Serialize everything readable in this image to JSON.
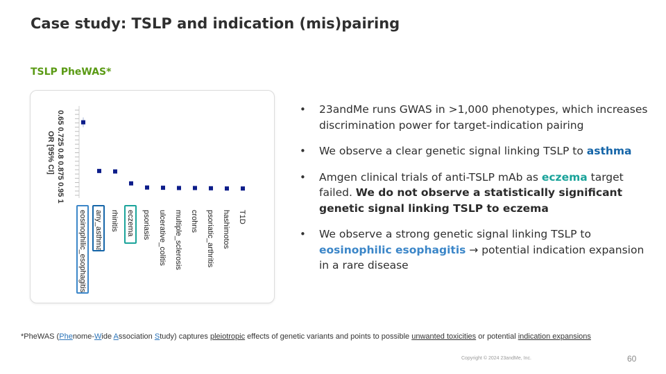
{
  "slide": {
    "title": "Case study: TSLP and indication (mis)pairing",
    "subtitle": "TSLP PheWAS*",
    "page_number": "60",
    "copyright": "Copyright © 2024 23andMe, Inc."
  },
  "bullets": [
    {
      "parts": [
        {
          "text": "23andMe runs GWAS in >1,000 phenotypes, which increases discrimination power for target-indication pairing",
          "style": "normal"
        }
      ]
    },
    {
      "parts": [
        {
          "text": "We observe a clear genetic signal linking TSLP to ",
          "style": "normal"
        },
        {
          "text": "asthma",
          "style": "asthma"
        }
      ]
    },
    {
      "parts": [
        {
          "text": "Amgen clinical trials of anti-TSLP mAb as ",
          "style": "normal"
        },
        {
          "text": "eczema",
          "style": "eczema"
        },
        {
          "text": " target failed.  ",
          "style": "normal"
        },
        {
          "text": "We do not observe a statistically significant genetic signal linking TSLP to eczema",
          "style": "strong"
        }
      ]
    },
    {
      "parts": [
        {
          "text": "We observe a strong genetic signal linking TSLP to ",
          "style": "normal"
        },
        {
          "text": "eosinophilic esophagitis",
          "style": "eoe"
        },
        {
          "text": " → potential indication expansion in a rare disease",
          "style": "normal"
        }
      ]
    }
  ],
  "footnote": {
    "parts": [
      {
        "text": "*PheWAS (",
        "style": "plain"
      },
      {
        "text": "Phe",
        "style": "link-underline"
      },
      {
        "text": "nome-",
        "style": "plain"
      },
      {
        "text": "W",
        "style": "link-underline"
      },
      {
        "text": "ide ",
        "style": "plain"
      },
      {
        "text": "A",
        "style": "link-underline"
      },
      {
        "text": "ssociation ",
        "style": "plain"
      },
      {
        "text": "S",
        "style": "link-underline"
      },
      {
        "text": "tudy) captures ",
        "style": "plain"
      },
      {
        "text": "pleiotropic",
        "style": "underline"
      },
      {
        "text": " effects of genetic variants and points to possible ",
        "style": "plain"
      },
      {
        "text": "unwanted toxicities",
        "style": "underline"
      },
      {
        "text": " or potential ",
        "style": "plain"
      },
      {
        "text": "indication expansions",
        "style": "underline"
      }
    ]
  },
  "colors": {
    "asthma": "#1565a8",
    "eczema": "#1aa39a",
    "eoe": "#3b86c8",
    "subtitle": "#5a9a14",
    "marker": "#0d1d8a"
  },
  "chart_data": {
    "type": "scatter",
    "orientation": "rotated-90-clockwise",
    "title": "",
    "ylabel": "OR [95% CI]",
    "y_ticks": [
      "0.65",
      "0.725",
      "0.8",
      "0.875",
      "0.95",
      "1"
    ],
    "ylim": [
      0.65,
      1.0
    ],
    "categories": [
      "eosinophilic_esophagitis",
      "any_asthma",
      "rhinitis",
      "eczema",
      "psoriasis",
      "ulcerative_colitis",
      "multiple_sclerosis",
      "crohns",
      "psoriatic_arthritis",
      "hashimotos",
      "T1D"
    ],
    "values": [
      0.7,
      0.9,
      0.902,
      0.951,
      0.968,
      0.969,
      0.97,
      0.97,
      0.971,
      0.972,
      0.972
    ],
    "ci_low": [
      0.68,
      0.895,
      0.897,
      0.944,
      0.964,
      0.965,
      0.966,
      0.966,
      0.966,
      0.967,
      0.968
    ],
    "ci_high": [
      0.72,
      0.905,
      0.907,
      0.958,
      0.972,
      0.973,
      0.974,
      0.974,
      0.976,
      0.977,
      0.976
    ],
    "highlighted": [
      {
        "category": "eosinophilic_esophagitis",
        "color": "#3b86c8"
      },
      {
        "category": "any_asthma",
        "color": "#1565a8"
      },
      {
        "category": "eczema",
        "color": "#1aa39a"
      }
    ],
    "grid": false
  }
}
